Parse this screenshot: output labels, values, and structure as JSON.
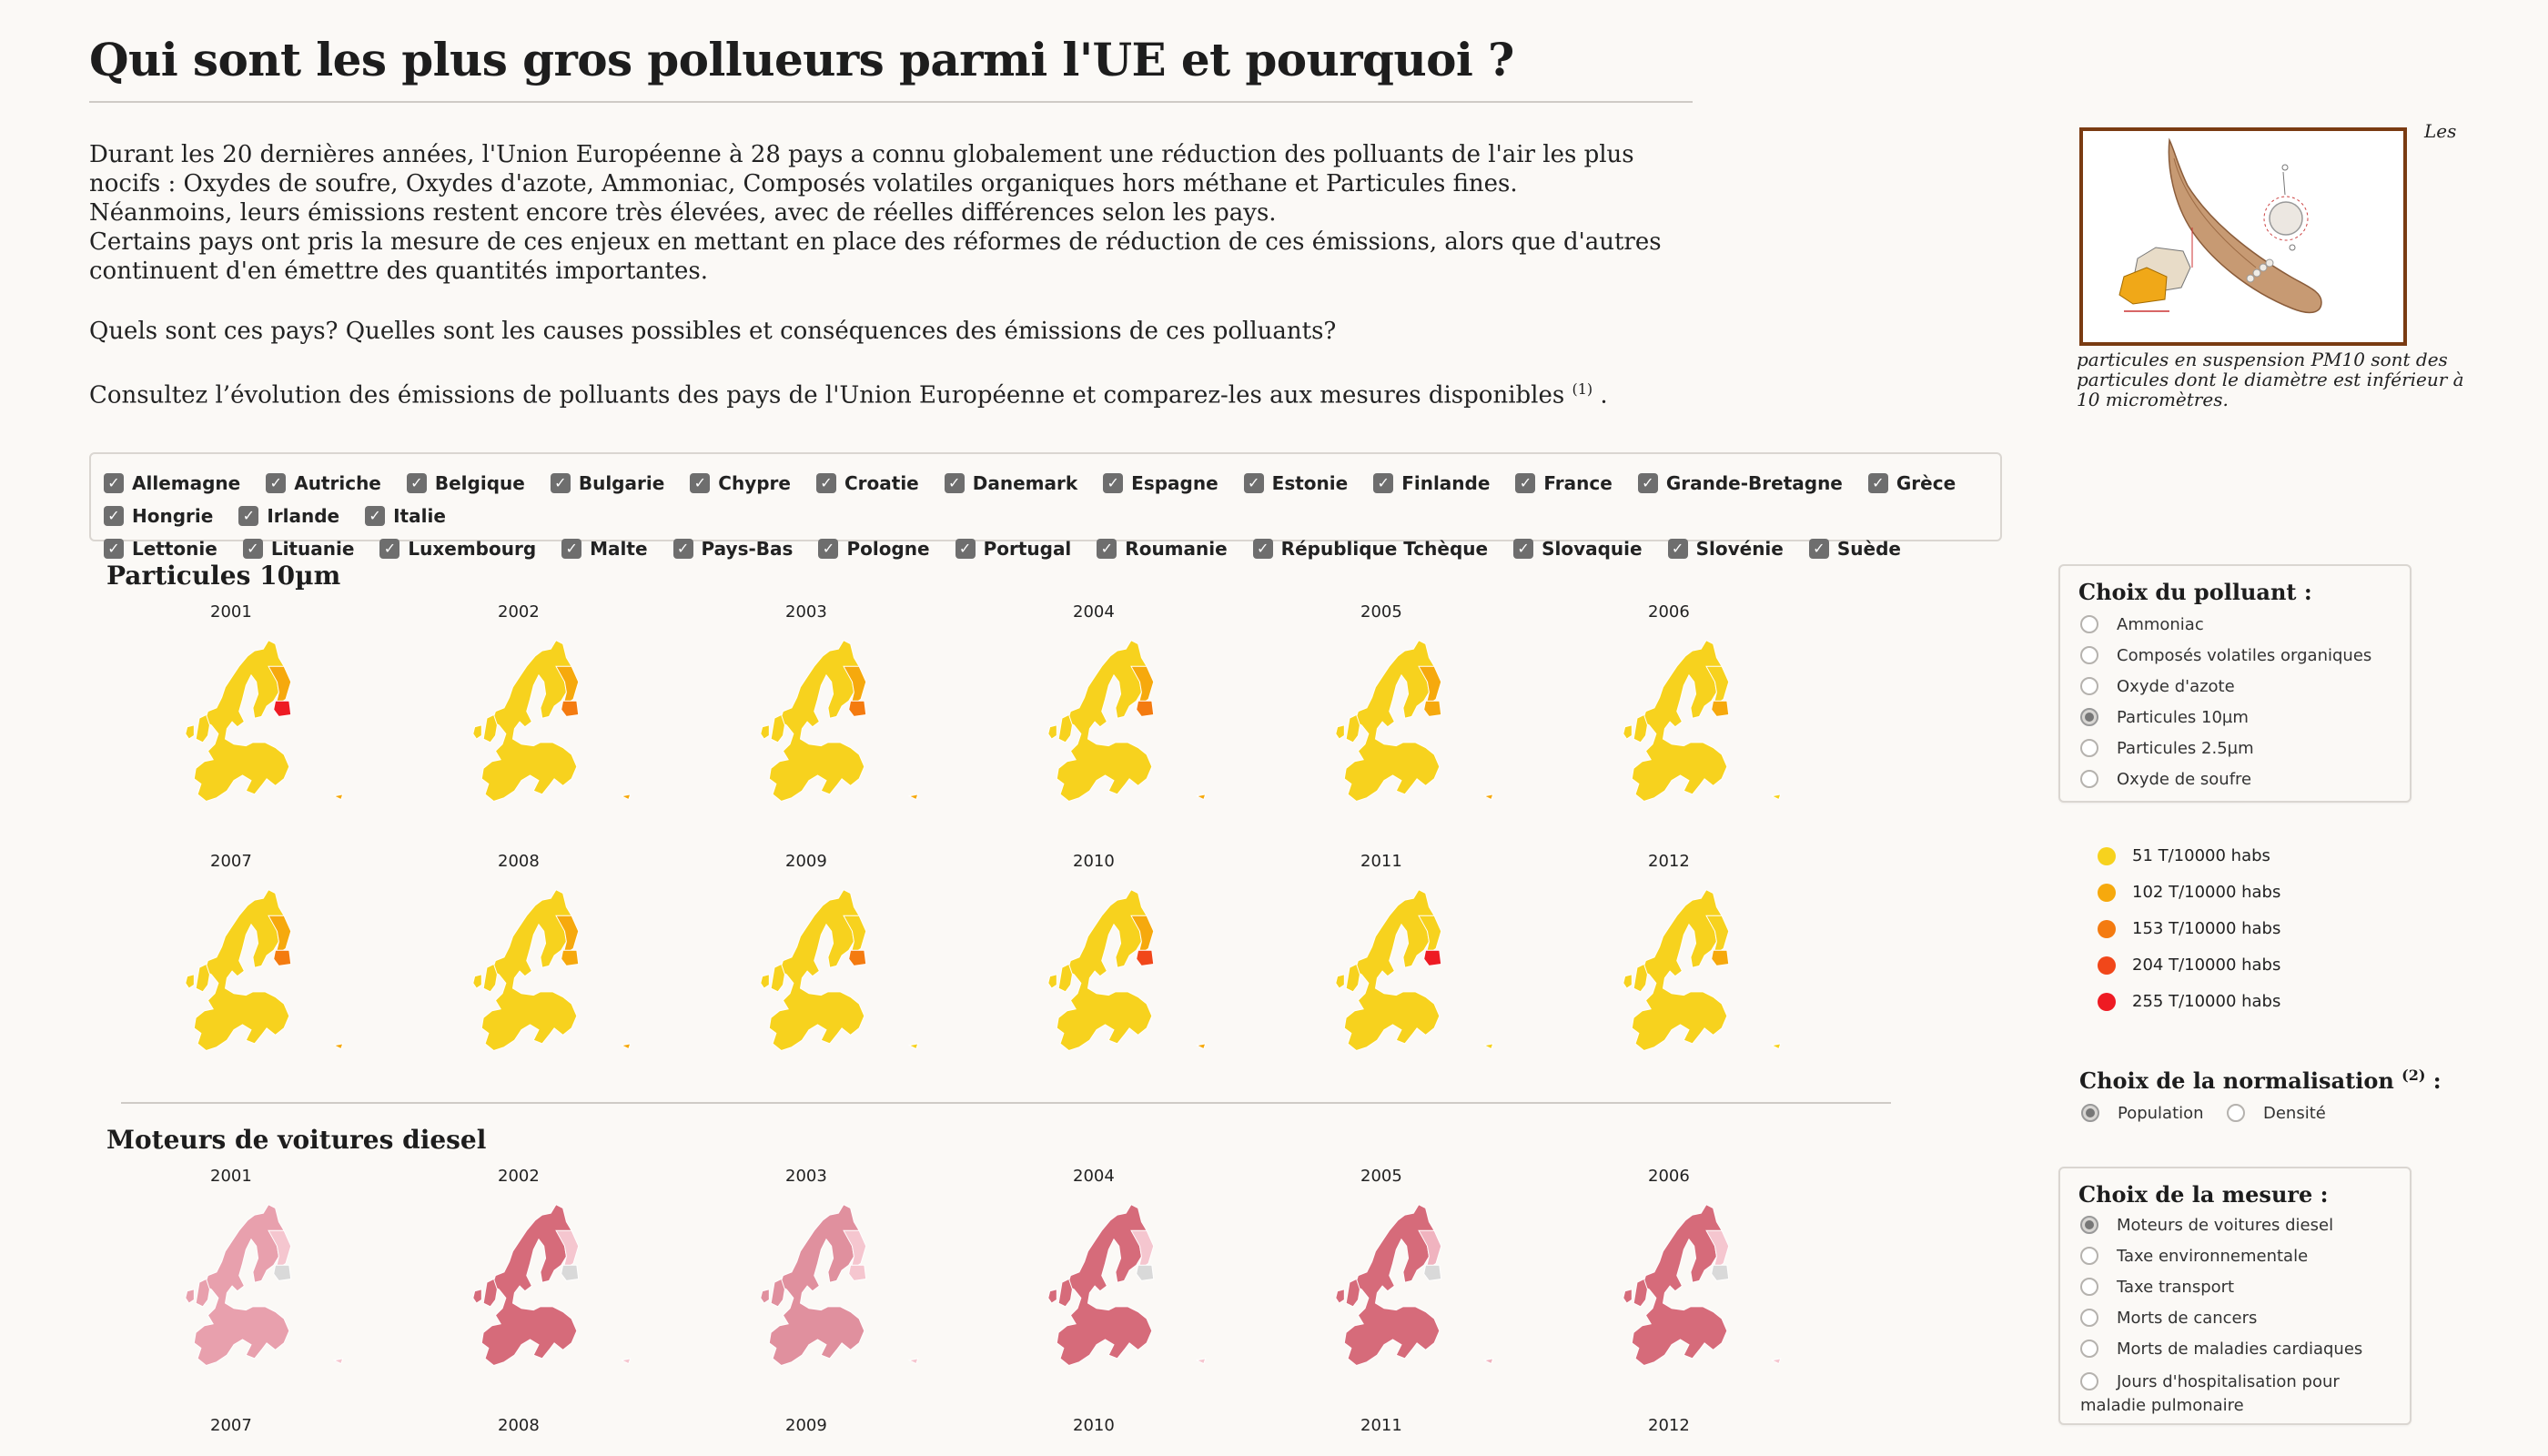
{
  "header": {
    "title": "Qui sont les plus gros pollueurs parmi l'UE et pourquoi ?"
  },
  "intro": {
    "p1": "Durant les 20 dernières années, l'Union Européenne à 28 pays a connu globalement une réduction des polluants de l'air les plus nocifs : Oxydes de soufre, Oxydes d'azote, Ammoniac, Composés volatiles organiques hors méthane et Particules fines.",
    "p2": "Néanmoins, leurs émissions restent encore très élevées, avec de réelles différences selon les pays.",
    "p3": "Certains pays ont pris la mesure de ces enjeux en mettant en place des réformes de réduction de ces émissions, alors que d'autres continuent d'en émettre des quantités importantes.",
    "questions": "Quels sont ces pays?   Quelles sont les causes possibles et conséquences des émissions de ces polluants?",
    "consult": "Consultez l’évolution des émissions de polluants des pays de l'Union Européenne et comparez-les aux mesures disponibles",
    "consult_note": "(1)",
    "consult_end": "."
  },
  "figure": {
    "caption_top": "Les",
    "caption": "particules en suspension PM10 sont des particules dont le diamètre est inférieur à 10 micromètres."
  },
  "countries": [
    "Allemagne",
    "Autriche",
    "Belgique",
    "Bulgarie",
    "Chypre",
    "Croatie",
    "Danemark",
    "Espagne",
    "Estonie",
    "Finlande",
    "France",
    "Grande-Bretagne",
    "Grèce",
    "Hongrie",
    "Irlande",
    "Italie",
    "Lettonie",
    "Lituanie",
    "Luxembourg",
    "Malte",
    "Pays-Bas",
    "Pologne",
    "Portugal",
    "Roumanie",
    "République Tchèque",
    "Slovaquie",
    "Slovénie",
    "Suède"
  ],
  "sections": {
    "pollutant_title": "Particules 10µm",
    "measure_title": "Moteurs de voitures diesel",
    "years": [
      "2001",
      "2002",
      "2003",
      "2004",
      "2005",
      "2006",
      "2007",
      "2008",
      "2009",
      "2010",
      "2011",
      "2012"
    ]
  },
  "pollutant_panel": {
    "title": "Choix du polluant :",
    "options": [
      "Ammoniac",
      "Composés volatiles organiques",
      "Oxyde d'azote",
      "Particules 10µm",
      "Particules 2.5µm",
      "Oxyde de soufre"
    ],
    "selected": "Particules 10µm"
  },
  "legend": {
    "items": [
      {
        "label": "51 T/10000 habs",
        "color": "#f7d21e"
      },
      {
        "label": "102 T/10000 habs",
        "color": "#f6a90d"
      },
      {
        "label": "153 T/10000 habs",
        "color": "#f47b10"
      },
      {
        "label": "204 T/10000 habs",
        "color": "#f1471a"
      },
      {
        "label": "255 T/10000 habs",
        "color": "#ee1b23"
      }
    ]
  },
  "normalization": {
    "title": "Choix de la normalisation",
    "note": "(2)",
    "colon": " :",
    "options": [
      "Population",
      "Densité"
    ],
    "selected": "Population"
  },
  "measure_panel": {
    "title": "Choix de la mesure :",
    "options": [
      "Moteurs de voitures diesel",
      "Taxe environnementale",
      "Taxe transport",
      "Morts de cancers",
      "Morts de maladies cardiaques",
      "Jours d'hospitalisation pour maladie pulmonaire"
    ],
    "selected": "Moteurs de voitures diesel"
  }
}
